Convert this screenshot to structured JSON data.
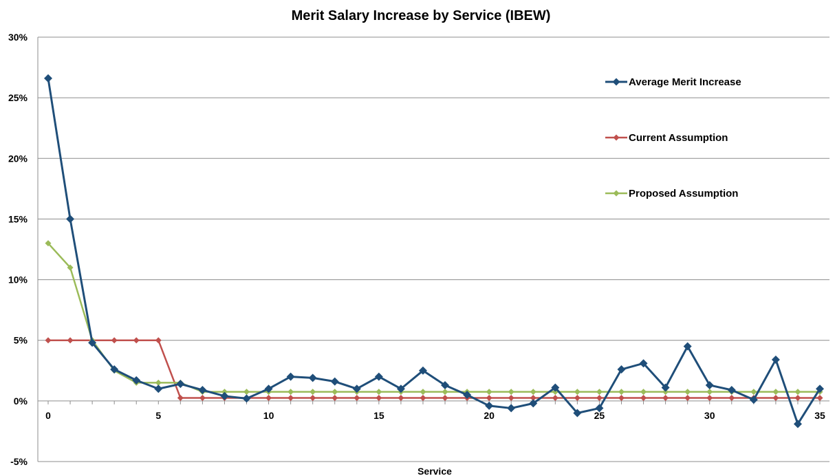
{
  "chart_data": {
    "type": "line",
    "title": "Merit Salary Increase by Service (IBEW)",
    "xlabel": "Service",
    "ylabel": "",
    "xlim": [
      0,
      35
    ],
    "ylim": [
      -5,
      30
    ],
    "x": [
      0,
      1,
      2,
      3,
      4,
      5,
      6,
      7,
      8,
      9,
      10,
      11,
      12,
      13,
      14,
      15,
      16,
      17,
      18,
      19,
      20,
      21,
      22,
      23,
      24,
      25,
      26,
      27,
      28,
      29,
      30,
      31,
      32,
      33,
      34,
      35
    ],
    "x_ticks": [
      0,
      5,
      10,
      15,
      20,
      25,
      30,
      35
    ],
    "x_tick_labels": [
      "0",
      "5",
      "10",
      "15",
      "20",
      "25",
      "30",
      "35"
    ],
    "y_ticks": [
      -5,
      0,
      5,
      10,
      15,
      20,
      25,
      30
    ],
    "y_tick_labels": [
      "-5%",
      "0%",
      "5%",
      "10%",
      "15%",
      "20%",
      "25%",
      "30%"
    ],
    "grid": "horizontal",
    "legend_position": "right",
    "series": [
      {
        "name": "Average Merit Increase",
        "color": "#1f4e79",
        "marker": "diamond",
        "values": [
          26.6,
          15.0,
          4.8,
          2.6,
          1.7,
          1.0,
          1.4,
          0.9,
          0.4,
          0.2,
          1.0,
          2.0,
          1.9,
          1.6,
          1.0,
          2.0,
          1.0,
          2.5,
          1.3,
          0.5,
          -0.4,
          -0.6,
          -0.2,
          1.1,
          -1.0,
          -0.6,
          2.6,
          3.1,
          1.1,
          4.5,
          1.3,
          0.9,
          0.1,
          3.4,
          -1.9,
          1.0
        ]
      },
      {
        "name": "Current Assumption",
        "color": "#c0504d",
        "marker": "diamond",
        "values": [
          5.0,
          5.0,
          5.0,
          5.0,
          5.0,
          5.0,
          0.25,
          0.25,
          0.25,
          0.25,
          0.25,
          0.25,
          0.25,
          0.25,
          0.25,
          0.25,
          0.25,
          0.25,
          0.25,
          0.25,
          0.25,
          0.25,
          0.25,
          0.25,
          0.25,
          0.25,
          0.25,
          0.25,
          0.25,
          0.25,
          0.25,
          0.25,
          0.25,
          0.25,
          0.25,
          0.25
        ]
      },
      {
        "name": "Proposed Assumption",
        "color": "#9bbb59",
        "marker": "diamond",
        "values": [
          13.0,
          11.0,
          5.0,
          2.5,
          1.5,
          1.5,
          1.5,
          0.75,
          0.75,
          0.75,
          0.75,
          0.75,
          0.75,
          0.75,
          0.75,
          0.75,
          0.75,
          0.75,
          0.75,
          0.75,
          0.75,
          0.75,
          0.75,
          0.75,
          0.75,
          0.75,
          0.75,
          0.75,
          0.75,
          0.75,
          0.75,
          0.75,
          0.75,
          0.75,
          0.75,
          0.75
        ]
      }
    ]
  }
}
